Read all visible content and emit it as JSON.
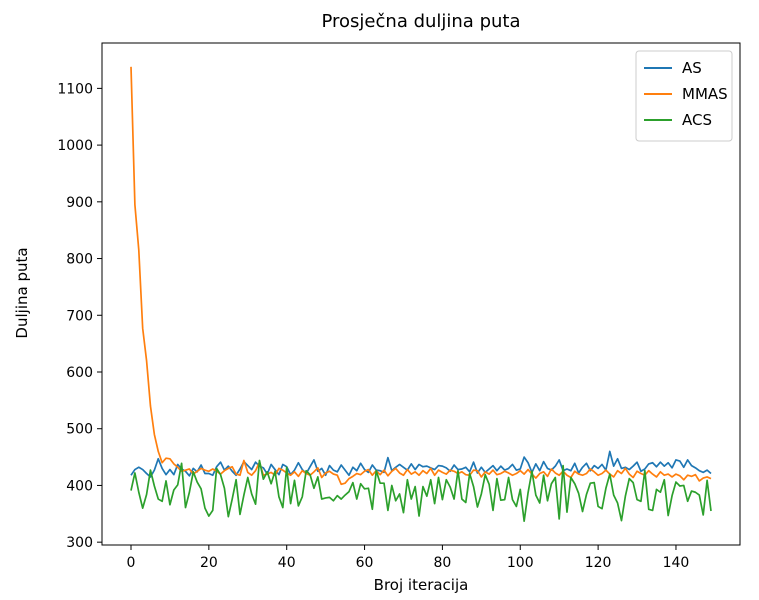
{
  "chart_data": {
    "type": "line",
    "title": "Prosječna duljina puta",
    "xlabel": "Broj iteracija",
    "ylabel": "Duljina puta",
    "xlim": [
      -7.45,
      156.45
    ],
    "ylim": [
      295,
      1180
    ],
    "xticks": [
      0,
      20,
      40,
      60,
      80,
      100,
      120,
      140
    ],
    "yticks": [
      300,
      400,
      500,
      600,
      700,
      800,
      900,
      1000,
      1100
    ],
    "grid": false,
    "legend_position": "top-right",
    "series": [
      {
        "name": "AS",
        "color": "#1f77b4",
        "values": [
          418,
          428,
          432,
          428,
          421,
          415,
          427,
          447,
          430,
          419,
          428,
          419,
          437,
          429,
          425,
          417,
          430,
          424,
          436,
          421,
          421,
          418,
          433,
          441,
          427,
          434,
          425,
          418,
          429,
          442,
          435,
          428,
          441,
          434,
          431,
          420,
          437,
          428,
          419,
          437,
          433,
          419,
          427,
          440,
          428,
          421,
          433,
          445,
          425,
          430,
          418,
          435,
          427,
          424,
          436,
          427,
          418,
          432,
          426,
          439,
          428,
          423,
          436,
          427,
          426,
          423,
          449,
          426,
          432,
          437,
          432,
          427,
          438,
          428,
          437,
          433,
          434,
          431,
          428,
          435,
          434,
          431,
          425,
          436,
          428,
          429,
          432,
          424,
          441,
          422,
          432,
          423,
          429,
          435,
          426,
          434,
          427,
          430,
          437,
          427,
          429,
          450,
          440,
          423,
          438,
          426,
          442,
          430,
          427,
          434,
          445,
          426,
          429,
          426,
          439,
          422,
          432,
          439,
          426,
          435,
          430,
          437,
          427,
          460,
          434,
          447,
          430,
          432,
          428,
          434,
          441,
          425,
          429,
          438,
          440,
          433,
          441,
          434,
          440,
          431,
          445,
          443,
          432,
          445,
          435,
          431,
          426,
          423,
          427,
          421
        ]
      },
      {
        "name": "MMAS",
        "color": "#ff7f0e",
        "values": [
          1138,
          895,
          815,
          677,
          620,
          540,
          490,
          460,
          440,
          448,
          447,
          438,
          432,
          425,
          427,
          429,
          420,
          425,
          430,
          427,
          425,
          429,
          425,
          420,
          426,
          430,
          433,
          420,
          418,
          444,
          423,
          418,
          426,
          441,
          418,
          420,
          423,
          418,
          430,
          427,
          422,
          418,
          424,
          416,
          426,
          421,
          418,
          424,
          431,
          414,
          422,
          425,
          420,
          418,
          402,
          404,
          412,
          416,
          421,
          419,
          425,
          428,
          418,
          426,
          419,
          427,
          417,
          425,
          430,
          422,
          418,
          428,
          420,
          424,
          418,
          426,
          421,
          430,
          418,
          427,
          423,
          420,
          427,
          425,
          421,
          424,
          419,
          418,
          427,
          426,
          415,
          424,
          420,
          427,
          419,
          421,
          425,
          422,
          418,
          421,
          426,
          420,
          428,
          420,
          413,
          421,
          424,
          416,
          429,
          422,
          418,
          425,
          418,
          414,
          425,
          420,
          418,
          421,
          429,
          424,
          418,
          421,
          427,
          420,
          415,
          426,
          421,
          430,
          420,
          414,
          425,
          421,
          418,
          426,
          420,
          415,
          424,
          418,
          420,
          415,
          420,
          417,
          410,
          418,
          416,
          419,
          408,
          413,
          415,
          412
        ]
      },
      {
        "name": "ACS",
        "color": "#2ca02c",
        "values": [
          391,
          422,
          388,
          360,
          384,
          427,
          399,
          376,
          372,
          408,
          366,
          392,
          401,
          439,
          361,
          388,
          424,
          406,
          394,
          360,
          346,
          356,
          430,
          419,
          395,
          345,
          376,
          410,
          349,
          383,
          414,
          385,
          367,
          444,
          411,
          424,
          403,
          425,
          380,
          361,
          432,
          368,
          409,
          364,
          380,
          426,
          419,
          395,
          415,
          376,
          378,
          379,
          373,
          382,
          376,
          383,
          389,
          405,
          376,
          403,
          394,
          395,
          358,
          426,
          404,
          404,
          356,
          400,
          373,
          385,
          352,
          410,
          376,
          398,
          346,
          398,
          381,
          410,
          368,
          414,
          375,
          410,
          397,
          376,
          426,
          376,
          370,
          421,
          398,
          362,
          385,
          419,
          402,
          356,
          412,
          374,
          375,
          414,
          375,
          363,
          393,
          337,
          387,
          425,
          383,
          369,
          418,
          373,
          403,
          414,
          341,
          435,
          353,
          414,
          403,
          386,
          354,
          384,
          404,
          405,
          363,
          359,
          395,
          420,
          383,
          369,
          338,
          381,
          412,
          405,
          375,
          372,
          426,
          358,
          356,
          393,
          388,
          410,
          347,
          382,
          406,
          399,
          400,
          372,
          390,
          388,
          383,
          348,
          409,
          355
        ]
      }
    ]
  }
}
